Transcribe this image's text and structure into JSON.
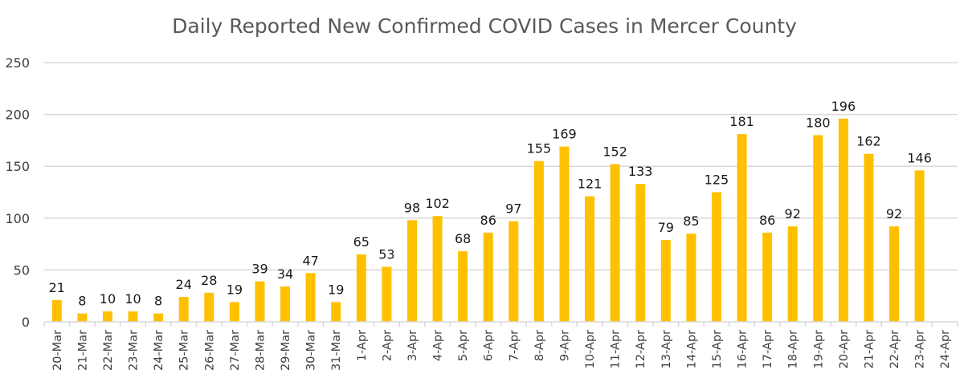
{
  "chart_data": {
    "type": "bar",
    "title": "Daily Reported New Confirmed COVID Cases in Mercer County",
    "xlabel": "",
    "ylabel": "",
    "ylim": [
      0,
      250
    ],
    "yticks": [
      0,
      50,
      100,
      150,
      200,
      250
    ],
    "grid": true,
    "legend": "none",
    "bar_color": "#FFC000",
    "categories": [
      "20-Mar",
      "21-Mar",
      "22-Mar",
      "23-Mar",
      "24-Mar",
      "25-Mar",
      "26-Mar",
      "27-Mar",
      "28-Mar",
      "29-Mar",
      "30-Mar",
      "31-Mar",
      "1-Apr",
      "2-Apr",
      "3-Apr",
      "4-Apr",
      "5-Apr",
      "6-Apr",
      "7-Apr",
      "8-Apr",
      "9-Apr",
      "10-Apr",
      "11-Apr",
      "12-Apr",
      "13-Apr",
      "14-Apr",
      "15-Apr",
      "16-Apr",
      "17-Apr",
      "18-Apr",
      "19-Apr",
      "20-Apr",
      "21-Apr",
      "22-Apr",
      "23-Apr",
      "24-Apr"
    ],
    "values": [
      21,
      8,
      10,
      10,
      8,
      24,
      28,
      19,
      39,
      34,
      47,
      19,
      65,
      53,
      98,
      102,
      68,
      86,
      97,
      155,
      169,
      121,
      152,
      133,
      79,
      85,
      125,
      181,
      86,
      92,
      180,
      196,
      162,
      92,
      146,
      null
    ]
  }
}
